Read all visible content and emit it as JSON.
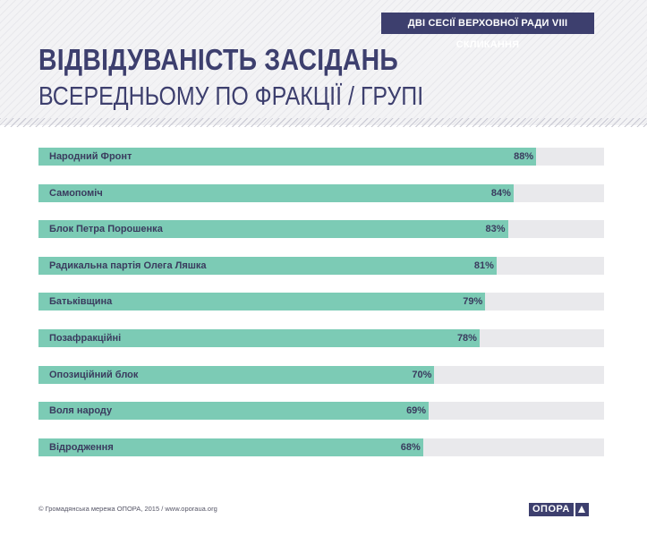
{
  "header": {
    "badge": "ДВІ СЕСІЇ ВЕРХОВНОЇ РАДИ VIII СКЛИКАННЯ"
  },
  "chart_data": {
    "type": "bar",
    "orientation": "horizontal",
    "title": "ВІДВІДУВАНІСТЬ ЗАСІДАНЬ",
    "subtitle": "ВСЕРЕДНЬОМУ ПО ФРАКЦІЇ / ГРУПІ",
    "categories": [
      "Народний Фронт",
      "Самопоміч",
      "Блок Петра Порошенка",
      "Радикальна партія Олега Ляшка",
      "Батьківщина",
      "Позафракційні",
      "Опозиційний блок",
      "Воля народу",
      "Відродження"
    ],
    "values": [
      88,
      84,
      83,
      81,
      79,
      78,
      70,
      69,
      68
    ],
    "value_labels": [
      "88%",
      "84%",
      "83%",
      "81%",
      "79%",
      "78%",
      "70%",
      "69%",
      "68%"
    ],
    "xlim": [
      0,
      100
    ],
    "unit": "%",
    "colors": {
      "bar": "#7ccbb5",
      "track": "#e9e9ec",
      "text": "#3a3b5e"
    }
  },
  "footer": {
    "copyright": "© Громадянська мережа ОПОРА, 2015 / www.oporaua.org",
    "logo": "ОПОРА"
  },
  "colors": {
    "brand": "#3d3f6e"
  }
}
